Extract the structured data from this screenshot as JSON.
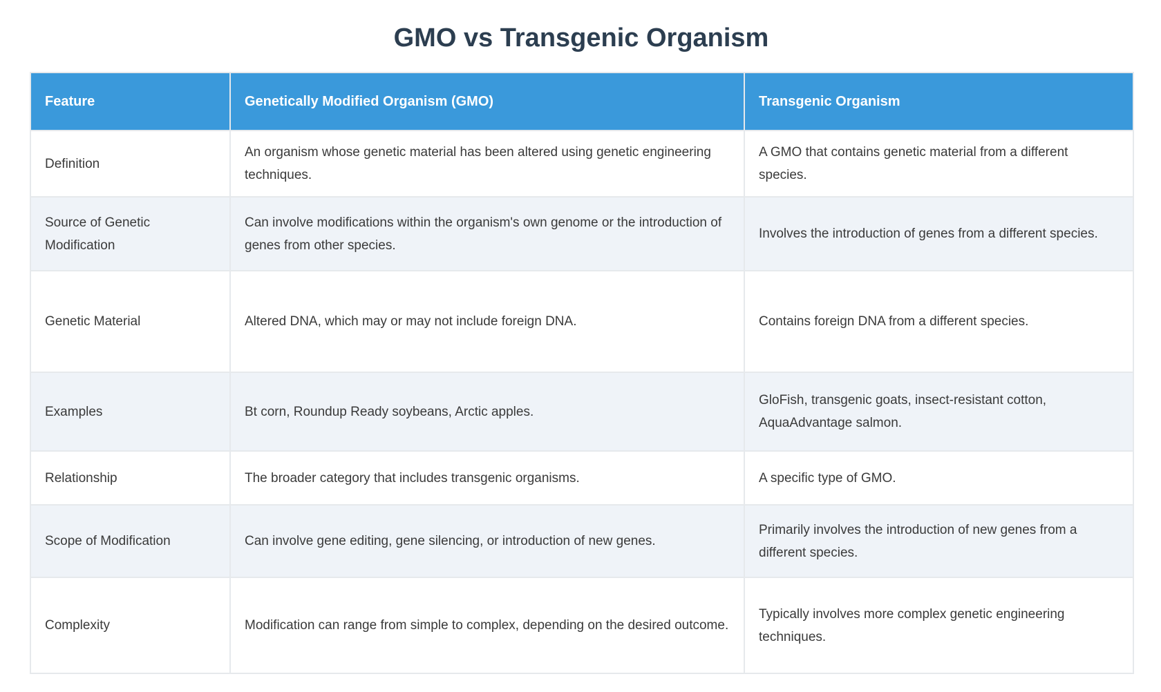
{
  "page": {
    "title": "GMO vs Transgenic Organism"
  },
  "theme": {
    "header_bg": "#3a99db",
    "header_text": "#ffffff",
    "title_color": "#2c3e50",
    "body_text": "#3a3a3a",
    "row_bg": "#ffffff",
    "row_alt_bg": "#eff3f8",
    "border_color": "#e6e9ec"
  },
  "table": {
    "columns": [
      "Feature",
      "Genetically Modified Organism (GMO)",
      "Transgenic Organism"
    ],
    "rows": [
      {
        "feature": "Definition",
        "gmo": "An organism whose genetic material has been altered using genetic engineering techniques.",
        "transgenic": "A GMO that contains genetic material from a different species."
      },
      {
        "feature": "Source of Genetic Modification",
        "gmo": "Can involve modifications within the organism's own genome or the introduction of genes from other species.",
        "transgenic": "Involves the introduction of genes from a different species."
      },
      {
        "feature": "Genetic Material",
        "gmo": "Altered DNA, which may or may not include foreign DNA.",
        "transgenic": "Contains foreign DNA from a different species."
      },
      {
        "feature": "Examples",
        "gmo": "Bt corn, Roundup Ready soybeans, Arctic apples.",
        "transgenic": "GloFish, transgenic goats, insect-resistant cotton, AquaAdvantage salmon."
      },
      {
        "feature": "Relationship",
        "gmo": "The broader category that includes transgenic organisms.",
        "transgenic": "A specific type of GMO."
      },
      {
        "feature": "Scope of Modification",
        "gmo": "Can involve gene editing, gene silencing, or introduction of new genes.",
        "transgenic": "Primarily involves the introduction of new genes from a different species."
      },
      {
        "feature": "Complexity",
        "gmo": "Modification can range from simple to complex, depending on the desired outcome.",
        "transgenic": "Typically involves more complex genetic engineering techniques."
      }
    ]
  }
}
